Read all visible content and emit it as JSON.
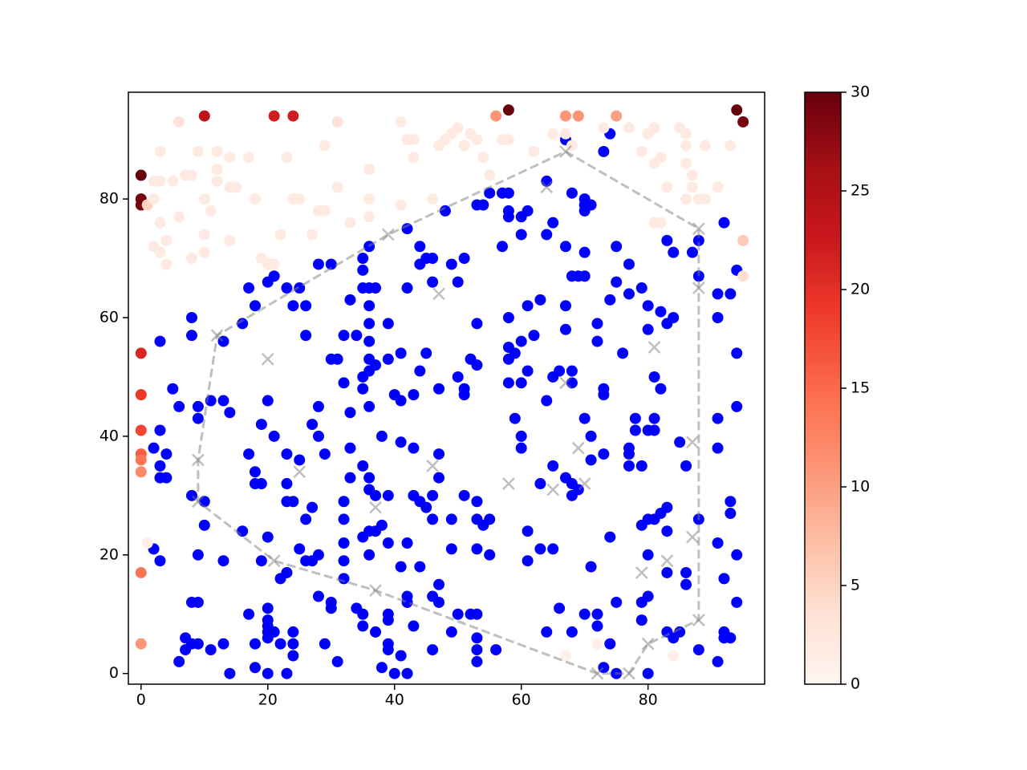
{
  "chart_data": {
    "type": "scatter",
    "xlim": [
      -2,
      98.4
    ],
    "ylim": [
      -1.8,
      98
    ],
    "xticks": [
      0,
      20,
      40,
      60,
      80
    ],
    "yticks": [
      0,
      20,
      40,
      60,
      80
    ],
    "series": [
      {
        "marker": "o",
        "color": "#0000ff",
        "x": [
          67,
          74,
          73,
          57,
          55,
          58,
          53,
          54,
          58,
          58,
          60,
          61,
          60,
          64,
          65,
          64,
          68,
          70,
          70,
          71,
          70,
          67,
          70,
          68,
          69,
          70,
          57,
          48,
          42,
          44,
          45,
          46,
          44,
          49,
          51,
          46,
          50,
          42,
          36,
          35,
          35,
          35,
          36,
          37,
          36,
          36,
          39,
          30,
          28,
          23,
          25,
          24,
          26,
          21,
          20,
          18,
          17,
          16,
          26,
          34,
          32,
          33,
          13,
          3,
          8,
          8,
          20,
          11,
          13,
          14,
          5,
          9,
          9,
          6,
          2,
          3,
          3,
          4,
          3,
          4,
          8,
          10,
          10,
          2,
          3,
          9,
          13,
          16,
          17,
          18,
          18,
          19,
          19,
          21,
          23,
          23,
          23,
          24,
          25,
          25,
          26,
          26,
          27,
          27,
          28,
          28,
          29,
          30,
          31,
          32,
          33,
          33,
          32,
          33,
          32,
          32,
          32,
          32,
          35,
          35,
          36,
          36,
          36,
          36,
          37,
          39,
          41,
          40,
          41,
          43,
          44,
          45,
          47,
          38,
          41,
          43,
          47,
          35,
          36,
          36,
          37,
          39,
          38,
          36,
          35,
          36,
          37,
          39,
          42,
          44,
          41,
          43,
          44,
          45,
          46,
          46,
          47,
          49,
          49,
          51,
          53,
          54,
          55,
          53,
          55,
          53,
          51,
          51,
          52,
          53,
          50,
          53,
          58,
          58,
          58,
          59,
          60,
          62,
          61,
          63,
          59,
          60,
          60,
          58,
          60,
          61,
          64,
          65,
          66,
          68,
          68,
          70,
          71,
          71,
          73,
          73,
          73,
          72,
          72,
          67,
          67,
          74,
          75,
          75,
          77,
          79,
          77,
          80,
          80,
          82,
          83,
          84,
          83,
          84,
          87,
          88,
          88,
          92,
          91,
          93,
          91,
          94,
          94,
          94,
          91,
          91,
          86,
          85,
          81,
          82,
          81,
          81,
          80,
          78,
          78,
          76,
          77,
          77,
          77,
          79,
          82,
          81,
          80,
          79,
          83,
          83,
          88,
          83,
          86,
          86,
          80,
          74,
          75,
          79,
          79,
          80,
          83,
          84,
          85,
          88,
          91,
          92,
          92,
          93,
          94,
          94,
          92,
          91,
          93,
          93,
          80,
          75,
          73,
          74,
          70,
          72,
          72,
          71,
          68,
          66,
          64,
          65,
          63,
          61,
          61,
          65,
          67,
          68,
          68,
          69,
          63,
          56,
          53,
          53,
          53,
          52,
          53,
          50,
          49,
          47,
          46,
          46,
          47,
          43,
          42,
          42,
          41,
          40,
          42,
          38,
          39,
          39,
          39,
          39,
          37,
          35,
          35,
          34,
          31,
          29,
          30,
          30,
          28,
          28,
          27,
          22,
          23,
          24,
          24,
          24,
          22,
          21,
          20,
          20,
          20,
          20,
          20,
          18,
          18,
          17,
          19,
          20,
          20,
          23,
          14,
          13,
          11,
          9,
          8,
          7,
          7,
          6,
          8,
          9
        ],
        "y": [
          90,
          91,
          88,
          81,
          81,
          81,
          79,
          79,
          78,
          77,
          77,
          78,
          74,
          83,
          76,
          74,
          81,
          80,
          79,
          79,
          78,
          72,
          71,
          67,
          67,
          67,
          72,
          78,
          75,
          72,
          70,
          70,
          69,
          69,
          70,
          66,
          66,
          65,
          72,
          70,
          68,
          65,
          65,
          65,
          62,
          59,
          59,
          69,
          69,
          65,
          65,
          62,
          62,
          67,
          66,
          62,
          65,
          59,
          57,
          57,
          57,
          63,
          56,
          56,
          60,
          57,
          46,
          46,
          46,
          44,
          48,
          45,
          43,
          45,
          38,
          41,
          35,
          37,
          33,
          33,
          30,
          29,
          25,
          21,
          19,
          20,
          19,
          24,
          37,
          34,
          32,
          32,
          42,
          40,
          37,
          32,
          29,
          29,
          36,
          21,
          19,
          26,
          28,
          42,
          40,
          45,
          37,
          53,
          53,
          49,
          44,
          38,
          29,
          33,
          26,
          22,
          19,
          16,
          50,
          48,
          51,
          53,
          56,
          45,
          52,
          53,
          54,
          47,
          46,
          47,
          51,
          54,
          48,
          40,
          39,
          38,
          37,
          35,
          33,
          31,
          30,
          30,
          25,
          24,
          23,
          20,
          24,
          22,
          22,
          18,
          18,
          30,
          29,
          28,
          26,
          30,
          33,
          26,
          21,
          30,
          26,
          25,
          26,
          21,
          20,
          29,
          47,
          48,
          53,
          52,
          50,
          59,
          60,
          55,
          53,
          54,
          56,
          57,
          62,
          63,
          43,
          40,
          38,
          49,
          49,
          51,
          46,
          50,
          51,
          51,
          49,
          43,
          40,
          36,
          37,
          48,
          47,
          56,
          59,
          58,
          62,
          63,
          66,
          72,
          69,
          65,
          64,
          62,
          58,
          61,
          59,
          60,
          73,
          71,
          71,
          73,
          67,
          76,
          64,
          64,
          60,
          68,
          54,
          45,
          43,
          38,
          35,
          39,
          50,
          48,
          43,
          41,
          41,
          41,
          43,
          54,
          38,
          37,
          35,
          35,
          27,
          26,
          26,
          25,
          28,
          24,
          26,
          17,
          17,
          15,
          20,
          23,
          12,
          12,
          9,
          13,
          7,
          6,
          7,
          4,
          2,
          6,
          7,
          6,
          12,
          20,
          16,
          22,
          29,
          27,
          0,
          0,
          1,
          5,
          10,
          10,
          8,
          18,
          7,
          11,
          7,
          21,
          21,
          24,
          19,
          35,
          33,
          32,
          30,
          31,
          32,
          4,
          2,
          4,
          6,
          10,
          10,
          10,
          7,
          12,
          4,
          13,
          15,
          8,
          12,
          13,
          3,
          0,
          0,
          1,
          10,
          9,
          5,
          4,
          7,
          8,
          10,
          11,
          2,
          5,
          12,
          11,
          13,
          20,
          19,
          16,
          17,
          7,
          5,
          3,
          5,
          7,
          11,
          9,
          8,
          7,
          6,
          5,
          1,
          10,
          19,
          23,
          0,
          0,
          0,
          5,
          4,
          5,
          5,
          6,
          4,
          2,
          12,
          12
        ]
      },
      {
        "marker": "o",
        "colormap": "colorbar",
        "x": [
          0,
          0,
          0,
          10,
          21,
          24,
          58,
          94,
          95,
          56,
          67,
          69,
          75,
          0,
          0,
          0,
          0,
          0,
          0,
          0,
          0,
          1,
          1,
          95,
          95,
          6,
          3,
          5,
          3,
          2,
          2,
          3,
          2,
          3,
          4,
          4,
          6,
          7,
          8,
          8,
          10,
          10,
          9,
          10,
          11,
          12,
          12,
          12,
          14,
          15,
          14,
          14,
          17,
          18,
          19,
          20,
          21,
          22,
          23,
          24,
          25,
          27,
          28,
          29,
          29,
          31,
          31,
          33,
          36,
          36,
          36,
          41,
          41,
          42,
          43,
          43,
          46,
          47,
          48,
          49,
          50,
          51,
          52,
          53,
          54,
          55,
          57,
          58,
          62,
          65,
          67,
          68,
          73,
          77,
          79,
          81,
          81,
          82,
          80,
          81,
          82,
          83,
          85,
          86,
          86,
          86,
          87,
          87,
          86,
          88,
          89,
          89,
          91,
          93,
          84,
          72,
          67
        ],
        "y": [
          84,
          80,
          79,
          94,
          94,
          94,
          95,
          95,
          93,
          94,
          94,
          94,
          94,
          54,
          47,
          41,
          37,
          36,
          34,
          17,
          5,
          79,
          22,
          73,
          67,
          93,
          88,
          83,
          83,
          83,
          80,
          76,
          72,
          71,
          69,
          73,
          77,
          84,
          84,
          70,
          71,
          74,
          88,
          80,
          78,
          88,
          85,
          83,
          82,
          82,
          87,
          73,
          87,
          80,
          70,
          69,
          69,
          74,
          87,
          80,
          80,
          74,
          78,
          78,
          89,
          82,
          93,
          76,
          85,
          80,
          77,
          79,
          93,
          90,
          90,
          87,
          80,
          89,
          90,
          91,
          92,
          89,
          91,
          90,
          87,
          84,
          90,
          90,
          88,
          91,
          91,
          89,
          92,
          92,
          88,
          92,
          86,
          87,
          91,
          76,
          76,
          82,
          92,
          91,
          89,
          86,
          84,
          82,
          80,
          80,
          89,
          80,
          82,
          89,
          3,
          5,
          3
        ],
        "c": [
          30,
          29,
          29,
          24,
          22,
          22,
          30,
          30,
          29,
          11,
          11,
          11,
          10,
          21,
          19,
          18,
          16,
          14,
          12,
          14,
          11,
          5,
          1,
          6,
          4,
          3,
          2,
          2,
          2,
          2,
          2,
          2,
          2,
          2,
          2,
          2,
          2,
          2,
          2,
          2,
          2,
          2,
          2,
          2,
          2,
          2,
          2,
          2,
          2,
          2,
          2,
          2,
          2,
          2,
          2,
          2,
          2,
          2,
          2,
          2,
          2,
          2,
          2,
          2,
          2,
          2,
          3,
          2,
          2,
          2,
          2,
          2,
          2,
          2,
          2,
          2,
          2,
          2,
          2,
          2,
          2,
          2,
          2,
          2,
          2,
          2,
          2,
          2,
          2,
          2,
          2,
          2,
          2,
          2,
          2,
          2,
          2,
          2,
          2,
          2,
          2,
          2,
          2,
          2,
          2,
          2,
          2,
          2,
          2,
          2,
          2,
          2,
          2,
          2,
          1,
          1,
          1
        ]
      },
      {
        "marker": "line",
        "linestyle": "dashed",
        "color": "#808080",
        "alpha": 0.5,
        "x": [
          67,
          88,
          88,
          88,
          80,
          77,
          72,
          37,
          21,
          9,
          9,
          12,
          39,
          67
        ],
        "y": [
          88,
          75,
          65,
          9,
          5,
          0,
          0,
          14,
          19,
          29,
          36,
          57,
          74,
          88
        ]
      },
      {
        "marker": "x",
        "color": "#808080",
        "alpha": 0.5,
        "x": [
          67,
          88,
          88,
          64,
          47,
          20,
          12,
          39,
          9,
          9,
          25,
          21,
          37,
          37,
          46,
          58,
          65,
          67,
          69,
          70,
          81,
          87,
          87,
          83,
          79,
          88,
          80,
          77,
          72
        ],
        "y": [
          88,
          75,
          65,
          82,
          64,
          53,
          57,
          74,
          36,
          29,
          34,
          19,
          14,
          28,
          35,
          32,
          31,
          49,
          38,
          32,
          55,
          39,
          23,
          19,
          17,
          9,
          5,
          0,
          0
        ]
      }
    ],
    "colorbar": {
      "lim": [
        0,
        30
      ],
      "ticks": [
        0,
        5,
        10,
        15,
        20,
        25,
        30
      ],
      "colors": [
        "#fff5f0",
        "#fee0d2",
        "#fcbba1",
        "#fc9272",
        "#fb6a4a",
        "#ef3b2c",
        "#cb181d",
        "#a50f15",
        "#67000d"
      ]
    }
  }
}
